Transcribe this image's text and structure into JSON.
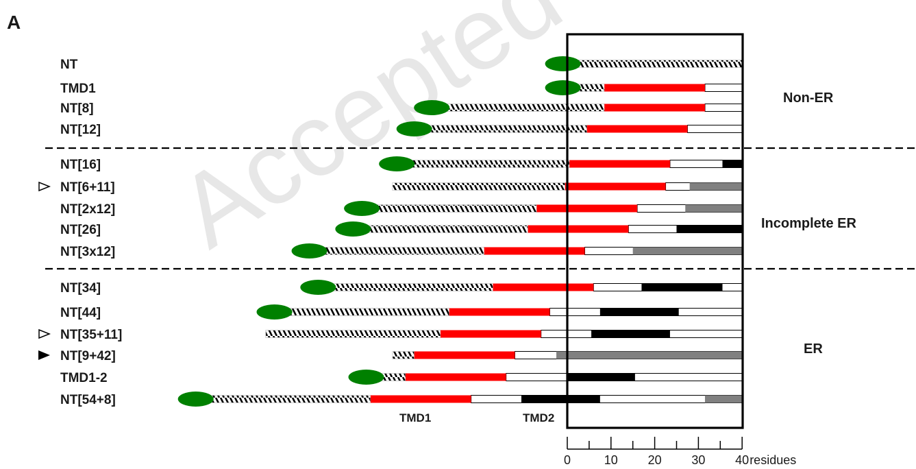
{
  "panel_label": "A",
  "region_labels": {
    "non_er": "Non-ER",
    "incomplete_er": "Incomplete ER",
    "er": "ER"
  },
  "tmd_labels": {
    "tmd1": "TMD1",
    "tmd2": "TMD2"
  },
  "scale": {
    "ticks": [
      "0",
      "10",
      "20",
      "30",
      "40"
    ],
    "unit": "residues",
    "max": 40
  },
  "watermark": "Accepted Manuscript",
  "colors": {
    "tmd1": "#ff0000",
    "tmd2_black": "#000000",
    "tmd2_gray": "#808080",
    "cap": "#008000",
    "hatch": "#000000"
  },
  "rows": [
    {
      "label": "NT",
      "marker": "",
      "cap": true,
      "nt_start": -1,
      "tmd1": null,
      "tmd2": null
    },
    {
      "label": "TMD1",
      "marker": "",
      "cap": true,
      "nt_start": -1,
      "tmd1": [
        8.5,
        31.5
      ],
      "tmd2": null
    },
    {
      "label": "NT[8]",
      "marker": "",
      "cap": true,
      "nt_start": -31,
      "tmd1": [
        8.5,
        31.5
      ],
      "tmd2": null
    },
    {
      "label": "NT[12]",
      "marker": "",
      "cap": true,
      "nt_start": -35,
      "tmd1": [
        4.5,
        27.5
      ],
      "tmd2": null
    },
    {
      "label": "NT[16]",
      "marker": "",
      "cap": true,
      "nt_start": -39,
      "tmd1": [
        0.5,
        23.5
      ],
      "tmd2": [
        35.5,
        40,
        "black"
      ]
    },
    {
      "label": "NT[6+11]",
      "marker": "open",
      "cap": false,
      "nt_start": -40,
      "tmd1": [
        -0.5,
        22.5
      ],
      "tmd2": [
        28,
        40,
        "gray"
      ]
    },
    {
      "label": "NT[2x12]",
      "marker": "",
      "cap": true,
      "nt_start": -47,
      "tmd1": [
        -7,
        16
      ],
      "tmd2": [
        27,
        40,
        "gray"
      ]
    },
    {
      "label": "NT[26]",
      "marker": "",
      "cap": true,
      "nt_start": -49,
      "tmd1": [
        -9,
        14
      ],
      "tmd2": [
        25,
        40,
        "black"
      ]
    },
    {
      "label": "NT[3x12]",
      "marker": "",
      "cap": true,
      "nt_start": -59,
      "tmd1": [
        -19,
        4
      ],
      "tmd2": [
        15,
        40,
        "gray"
      ]
    },
    {
      "label": "NT[34]",
      "marker": "",
      "cap": true,
      "nt_start": -57,
      "tmd1": [
        -17,
        6
      ],
      "tmd2": [
        17,
        35.5,
        "black"
      ]
    },
    {
      "label": "NT[44]",
      "marker": "",
      "cap": true,
      "nt_start": -67,
      "tmd1": [
        -27,
        -4
      ],
      "tmd2": [
        7.5,
        25.5,
        "black"
      ]
    },
    {
      "label": "NT[35+11]",
      "marker": "open",
      "cap": false,
      "nt_start": -69,
      "tmd1": [
        -29,
        -6
      ],
      "tmd2": [
        5.5,
        23.5,
        "black"
      ]
    },
    {
      "label": "NT[9+42]",
      "marker": "filled",
      "cap": false,
      "nt_start": -40,
      "tmd1": [
        -35,
        -12
      ],
      "tmd2": [
        -2.5,
        40,
        "gray"
      ]
    },
    {
      "label": "TMD1-2",
      "marker": "",
      "cap": true,
      "nt_start": -46,
      "tmd1": [
        -37,
        -14
      ],
      "tmd2": [
        0,
        15.5,
        "black"
      ]
    },
    {
      "label": "NT[54+8]",
      "marker": "",
      "cap": true,
      "nt_start": -85,
      "tmd1": [
        -45,
        -22
      ],
      "tmd2": [
        -10.5,
        7.5,
        "black"
      ],
      "tmd2_extra": [
        31.5,
        40,
        "gray"
      ]
    }
  ]
}
